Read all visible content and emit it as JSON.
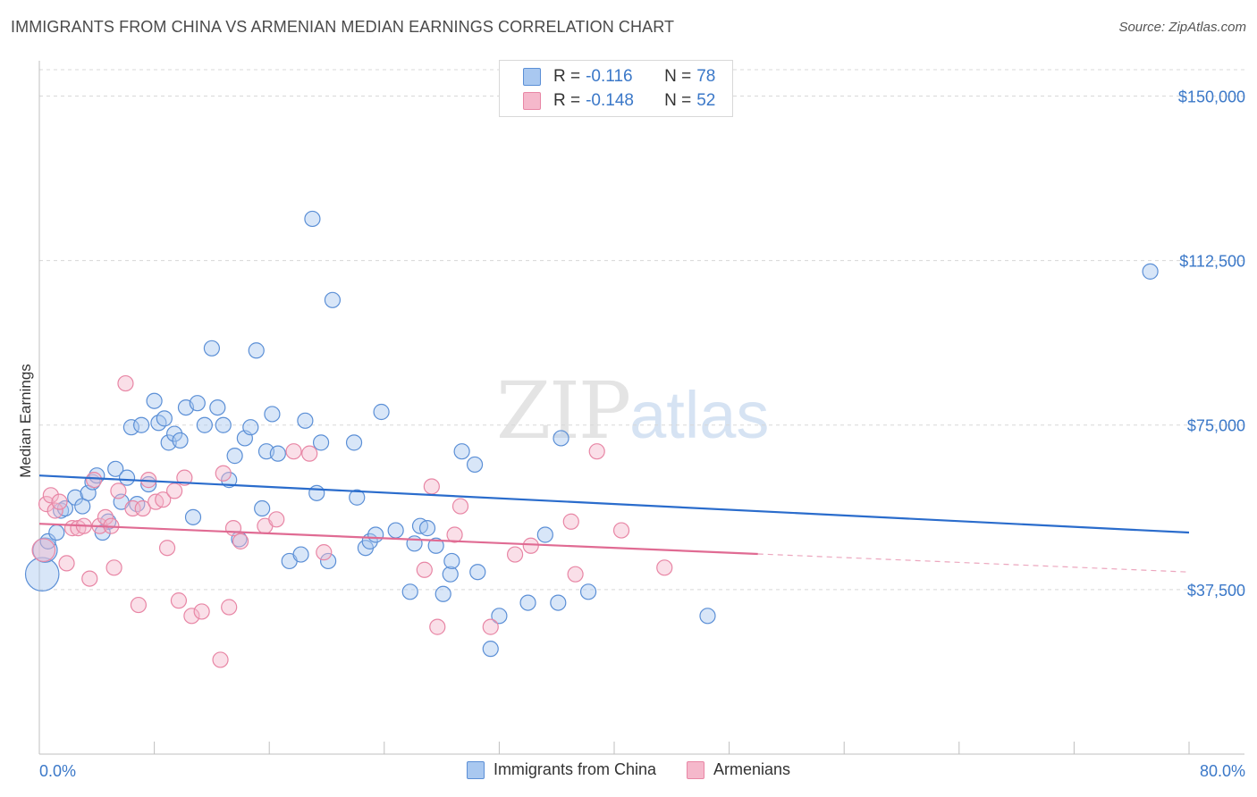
{
  "header": {
    "title": "IMMIGRANTS FROM CHINA VS ARMENIAN MEDIAN EARNINGS CORRELATION CHART",
    "source": "Source: ZipAtlas.com"
  },
  "watermark": {
    "zip": "ZIP",
    "atlas": "atlas"
  },
  "legend": {
    "rows": [
      {
        "r_label": "R =",
        "r_value": "-0.116",
        "n_label": "N =",
        "n_value": "78",
        "color": "#a9c8f0"
      },
      {
        "r_label": "R =",
        "r_value": "-0.148",
        "n_label": "N =",
        "n_value": "52",
        "color": "#f5b8cb"
      }
    ]
  },
  "colors": {
    "china_fill": "#a9c8f0",
    "china_stroke": "#5b8fd6",
    "china_line": "#2a6ccc",
    "armenian_fill": "#f5b8cb",
    "armenian_stroke": "#e886a5",
    "armenian_line": "#e06b93",
    "tick_text": "#3b78c8",
    "grid": "#d8d8d8"
  },
  "chart_data": {
    "type": "scatter",
    "ylabel": "Median Earnings",
    "xlabel": "",
    "xlim": [
      0,
      80
    ],
    "ylim": [
      0,
      156000
    ],
    "x_tick_labels": [
      "0.0%",
      "80.0%"
    ],
    "y_ticks": [
      {
        "value": 37500,
        "label": "$37,500"
      },
      {
        "value": 75000,
        "label": "$75,000"
      },
      {
        "value": 112500,
        "label": "$112,500"
      },
      {
        "value": 150000,
        "label": "$150,000"
      }
    ],
    "grid": true,
    "legend_position": "top-center and bottom",
    "series": [
      {
        "name": "Immigrants from China",
        "R": -0.116,
        "N": 78,
        "trend": {
          "x": [
            0,
            80
          ],
          "y": [
            63500,
            50500
          ],
          "dashed_from": null
        },
        "points": [
          [
            0.2,
            41000,
            2.2
          ],
          [
            0.4,
            46500,
            1.6
          ],
          [
            0.6,
            48500,
            1.0
          ],
          [
            1.2,
            50500,
            1.0
          ],
          [
            1.5,
            55500,
            1.0
          ],
          [
            1.8,
            56000,
            1.0
          ],
          [
            2.5,
            58500,
            1.0
          ],
          [
            3.0,
            56500,
            1.0
          ],
          [
            3.4,
            59500,
            1.0
          ],
          [
            3.7,
            62000,
            1.0
          ],
          [
            4.0,
            63500,
            1.0
          ],
          [
            4.4,
            50500,
            1.0
          ],
          [
            4.8,
            53000,
            1.0
          ],
          [
            5.3,
            65000,
            1.0
          ],
          [
            5.7,
            57500,
            1.0
          ],
          [
            6.1,
            63000,
            1.0
          ],
          [
            6.4,
            74500,
            1.0
          ],
          [
            6.8,
            57000,
            1.0
          ],
          [
            7.1,
            75000,
            1.0
          ],
          [
            7.6,
            61500,
            1.0
          ],
          [
            8.0,
            80500,
            1.0
          ],
          [
            8.3,
            75500,
            1.0
          ],
          [
            8.7,
            76500,
            1.0
          ],
          [
            9.0,
            71000,
            1.0
          ],
          [
            9.4,
            73000,
            1.0
          ],
          [
            9.8,
            71500,
            1.0
          ],
          [
            10.2,
            79000,
            1.0
          ],
          [
            10.7,
            54000,
            1.0
          ],
          [
            11.0,
            80000,
            1.0
          ],
          [
            11.5,
            75000,
            1.0
          ],
          [
            12.0,
            92500,
            1.0
          ],
          [
            12.4,
            79000,
            1.0
          ],
          [
            12.8,
            75000,
            1.0
          ],
          [
            13.2,
            62500,
            1.0
          ],
          [
            13.6,
            68000,
            1.0
          ],
          [
            13.9,
            49000,
            1.0
          ],
          [
            14.3,
            72000,
            1.0
          ],
          [
            14.7,
            74500,
            1.0
          ],
          [
            15.1,
            92000,
            1.0
          ],
          [
            15.5,
            56000,
            1.0
          ],
          [
            15.8,
            69000,
            1.0
          ],
          [
            16.2,
            77500,
            1.0
          ],
          [
            16.6,
            68500,
            1.0
          ],
          [
            17.4,
            44000,
            1.0
          ],
          [
            18.2,
            45500,
            1.0
          ],
          [
            18.5,
            76000,
            1.0
          ],
          [
            19.0,
            122000,
            1.0
          ],
          [
            19.3,
            59500,
            1.0
          ],
          [
            19.6,
            71000,
            1.0
          ],
          [
            20.1,
            44000,
            1.0
          ],
          [
            20.4,
            103500,
            1.0
          ],
          [
            21.9,
            71000,
            1.0
          ],
          [
            22.1,
            58500,
            1.0
          ],
          [
            22.7,
            47000,
            1.0
          ],
          [
            23.0,
            48500,
            1.0
          ],
          [
            23.4,
            50000,
            1.0
          ],
          [
            23.8,
            78000,
            1.0
          ],
          [
            24.8,
            51000,
            1.0
          ],
          [
            25.8,
            37000,
            1.0
          ],
          [
            26.1,
            48000,
            1.0
          ],
          [
            26.5,
            52000,
            1.0
          ],
          [
            27.0,
            51500,
            1.0
          ],
          [
            27.6,
            47500,
            1.0
          ],
          [
            28.1,
            36500,
            1.0
          ],
          [
            28.6,
            41000,
            1.0
          ],
          [
            28.7,
            44000,
            1.0
          ],
          [
            29.4,
            69000,
            1.0
          ],
          [
            30.3,
            66000,
            1.0
          ],
          [
            30.5,
            41500,
            1.0
          ],
          [
            31.4,
            24000,
            1.0
          ],
          [
            32.0,
            31500,
            1.0
          ],
          [
            34.0,
            34500,
            1.0
          ],
          [
            35.2,
            50000,
            1.0
          ],
          [
            36.1,
            34500,
            1.0
          ],
          [
            36.3,
            72000,
            1.0
          ],
          [
            38.2,
            37000,
            1.0
          ],
          [
            46.5,
            31500,
            1.0
          ],
          [
            77.3,
            110000,
            1.0
          ]
        ]
      },
      {
        "name": "Armenians",
        "R": -0.148,
        "N": 52,
        "trend": {
          "x": [
            0,
            80
          ],
          "y": [
            52500,
            41500
          ],
          "dashed_from": 50
        },
        "points": [
          [
            0.3,
            46500,
            1.5
          ],
          [
            0.5,
            57000,
            1.0
          ],
          [
            0.8,
            59000,
            1.0
          ],
          [
            1.1,
            55500,
            1.0
          ],
          [
            1.4,
            57500,
            1.0
          ],
          [
            1.9,
            43500,
            1.0
          ],
          [
            2.3,
            51500,
            1.0
          ],
          [
            2.7,
            51500,
            1.0
          ],
          [
            3.1,
            52000,
            1.0
          ],
          [
            3.5,
            40000,
            1.0
          ],
          [
            3.8,
            62500,
            1.0
          ],
          [
            4.2,
            52000,
            1.0
          ],
          [
            4.6,
            54000,
            1.0
          ],
          [
            5.0,
            52000,
            1.0
          ],
          [
            5.2,
            42500,
            1.0
          ],
          [
            5.5,
            60000,
            1.0
          ],
          [
            6.0,
            84500,
            1.0
          ],
          [
            6.5,
            56000,
            1.0
          ],
          [
            6.9,
            34000,
            1.0
          ],
          [
            7.2,
            56000,
            1.0
          ],
          [
            7.6,
            62500,
            1.0
          ],
          [
            8.1,
            57500,
            1.0
          ],
          [
            8.6,
            58000,
            1.0
          ],
          [
            8.9,
            47000,
            1.0
          ],
          [
            9.4,
            60000,
            1.0
          ],
          [
            9.7,
            35000,
            1.0
          ],
          [
            10.1,
            63000,
            1.0
          ],
          [
            10.6,
            31500,
            1.0
          ],
          [
            11.3,
            32500,
            1.0
          ],
          [
            12.6,
            21500,
            1.0
          ],
          [
            12.8,
            64000,
            1.0
          ],
          [
            13.2,
            33500,
            1.0
          ],
          [
            13.5,
            51500,
            1.0
          ],
          [
            14.0,
            48500,
            1.0
          ],
          [
            15.7,
            52000,
            1.0
          ],
          [
            16.5,
            53500,
            1.0
          ],
          [
            17.7,
            69000,
            1.0
          ],
          [
            18.8,
            68500,
            1.0
          ],
          [
            19.8,
            46000,
            1.0
          ],
          [
            26.8,
            42000,
            1.0
          ],
          [
            27.3,
            61000,
            1.0
          ],
          [
            27.7,
            29000,
            1.0
          ],
          [
            28.9,
            50000,
            1.0
          ],
          [
            29.3,
            56500,
            1.0
          ],
          [
            31.4,
            29000,
            1.0
          ],
          [
            33.1,
            45500,
            1.0
          ],
          [
            34.2,
            47500,
            1.0
          ],
          [
            37.0,
            53000,
            1.0
          ],
          [
            37.3,
            41000,
            1.0
          ],
          [
            38.8,
            69000,
            1.0
          ],
          [
            40.5,
            51000,
            1.0
          ],
          [
            43.5,
            42500,
            1.0
          ]
        ]
      }
    ]
  }
}
